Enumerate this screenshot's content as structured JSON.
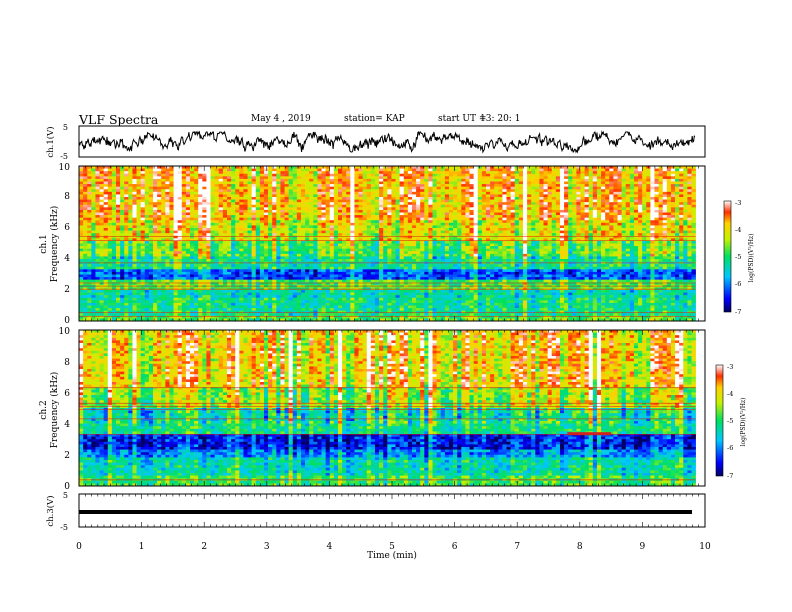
{
  "header": {
    "title": "VLF Spectra",
    "date": "May 4 , 2019",
    "station": "station= KAP",
    "start_label": "start UT =",
    "start_time": "13: 20: 1"
  },
  "chart_data": [
    {
      "type": "line",
      "ylabel": "ch.1(V)",
      "ylim": [
        -5,
        5
      ],
      "y_ticks": [
        "5",
        "-5"
      ],
      "xlim": [
        0,
        10
      ],
      "description_level": "noisy waveform around 0 V",
      "color": "#000000"
    },
    {
      "type": "heatmap",
      "ylabel": "ch.1",
      "ylabel2": "Frequency (kHz)",
      "xlim": [
        0,
        9.85
      ],
      "ylim": [
        0,
        10
      ],
      "y_ticks": [
        "0",
        "2",
        "4",
        "6",
        "8",
        "10"
      ],
      "colorbar": {
        "label": "log(PSD)(V²/Hz)",
        "ticks": [
          "-3",
          "-4",
          "-5",
          "-6",
          "-7"
        ],
        "range": [
          -7,
          -3
        ]
      },
      "bands_khz": [
        {
          "from": 0.0,
          "to": 0.4,
          "level": 0.55
        },
        {
          "from": 0.4,
          "to": 1.5,
          "level": 0.45
        },
        {
          "from": 1.5,
          "to": 2.0,
          "level": 0.4
        },
        {
          "from": 2.0,
          "to": 2.6,
          "level": 0.55
        },
        {
          "from": 2.6,
          "to": 3.4,
          "level": 0.2
        },
        {
          "from": 3.4,
          "to": 4.2,
          "level": 0.45
        },
        {
          "from": 4.2,
          "to": 5.2,
          "level": 0.55
        },
        {
          "from": 5.2,
          "to": 6.5,
          "level": 0.7
        },
        {
          "from": 6.5,
          "to": 10.0,
          "level": 0.8
        }
      ],
      "lines_khz": [
        0.3,
        0.55,
        2.05,
        2.25,
        2.45,
        3.75,
        5.2,
        5.45
      ]
    },
    {
      "type": "heatmap",
      "ylabel": "ch.2",
      "ylabel2": "Frequency (kHz)",
      "xlim": [
        0,
        9.85
      ],
      "ylim": [
        0,
        10
      ],
      "y_ticks": [
        "0",
        "2",
        "4",
        "6",
        "8",
        "10"
      ],
      "colorbar": {
        "label": "log(PSD)(V²/Hz)",
        "ticks": [
          "-3",
          "-4",
          "-5",
          "-6",
          "-7"
        ],
        "range": [
          -7,
          -3
        ]
      },
      "bands_khz": [
        {
          "from": 0.0,
          "to": 0.6,
          "level": 0.5
        },
        {
          "from": 0.6,
          "to": 1.9,
          "level": 0.4
        },
        {
          "from": 1.9,
          "to": 2.4,
          "level": 0.25
        },
        {
          "from": 2.4,
          "to": 3.4,
          "level": 0.12
        },
        {
          "from": 3.4,
          "to": 4.2,
          "level": 0.45
        },
        {
          "from": 4.2,
          "to": 5.0,
          "level": 0.4
        },
        {
          "from": 5.0,
          "to": 6.3,
          "level": 0.6
        },
        {
          "from": 6.3,
          "to": 10.0,
          "level": 0.75
        }
      ],
      "lines_khz": [
        0.4,
        3.3,
        4.3,
        4.9,
        5.1,
        5.3,
        6.3
      ],
      "highlight": {
        "x_from": 7.8,
        "x_to": 8.5,
        "f_khz": 3.35
      }
    },
    {
      "type": "line",
      "ylabel": "ch.3(V)",
      "ylim": [
        -5,
        5
      ],
      "y_ticks": [
        "5",
        "-5"
      ],
      "xlim": [
        0,
        10
      ],
      "xlabel": "Time (min)",
      "x_ticks": [
        "0",
        "1",
        "2",
        "3",
        "4",
        "5",
        "6",
        "7",
        "8",
        "9",
        "10"
      ],
      "constant_value": -0.5,
      "color": "#000000"
    }
  ]
}
